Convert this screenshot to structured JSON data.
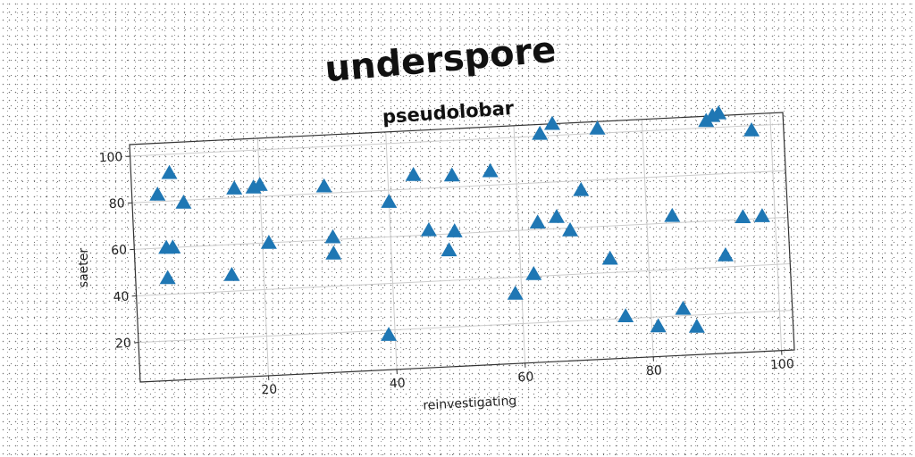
{
  "chart_data": {
    "type": "scatter",
    "title": "underspore",
    "subtitle": "pseudolobar",
    "xlabel": "reinvestigating",
    "ylabel": "saeter",
    "xlim": [
      0,
      102
    ],
    "ylim": [
      3,
      105
    ],
    "xticks": [
      20,
      40,
      60,
      80,
      100
    ],
    "yticks": [
      20,
      40,
      60,
      80,
      100
    ],
    "grid": true,
    "marker": "triangle-up",
    "colors": {
      "marker": "#1f77b4",
      "grid": "#cccccc",
      "axis": "#333333"
    },
    "points": [
      {
        "x": 4,
        "y": 83
      },
      {
        "x": 6,
        "y": 92
      },
      {
        "x": 8,
        "y": 79
      },
      {
        "x": 5,
        "y": 60
      },
      {
        "x": 6,
        "y": 60
      },
      {
        "x": 5,
        "y": 47
      },
      {
        "x": 15,
        "y": 47
      },
      {
        "x": 16,
        "y": 84
      },
      {
        "x": 19,
        "y": 84
      },
      {
        "x": 20,
        "y": 85
      },
      {
        "x": 21,
        "y": 60
      },
      {
        "x": 30,
        "y": 83
      },
      {
        "x": 31,
        "y": 61
      },
      {
        "x": 31,
        "y": 54
      },
      {
        "x": 39,
        "y": 18
      },
      {
        "x": 40,
        "y": 75
      },
      {
        "x": 44,
        "y": 86
      },
      {
        "x": 46,
        "y": 62
      },
      {
        "x": 49,
        "y": 53
      },
      {
        "x": 50,
        "y": 85
      },
      {
        "x": 50,
        "y": 61
      },
      {
        "x": 56,
        "y": 86
      },
      {
        "x": 59,
        "y": 33
      },
      {
        "x": 62,
        "y": 41
      },
      {
        "x": 63,
        "y": 63
      },
      {
        "x": 64,
        "y": 101
      },
      {
        "x": 66,
        "y": 105
      },
      {
        "x": 66,
        "y": 65
      },
      {
        "x": 68,
        "y": 59
      },
      {
        "x": 70,
        "y": 76
      },
      {
        "x": 73,
        "y": 102
      },
      {
        "x": 74,
        "y": 46
      },
      {
        "x": 76,
        "y": 21
      },
      {
        "x": 81,
        "y": 16
      },
      {
        "x": 84,
        "y": 63
      },
      {
        "x": 85,
        "y": 23
      },
      {
        "x": 87,
        "y": 15
      },
      {
        "x": 90,
        "y": 103
      },
      {
        "x": 91,
        "y": 105
      },
      {
        "x": 92,
        "y": 106
      },
      {
        "x": 92,
        "y": 45
      },
      {
        "x": 95,
        "y": 61
      },
      {
        "x": 97,
        "y": 98
      },
      {
        "x": 98,
        "y": 61
      }
    ]
  }
}
